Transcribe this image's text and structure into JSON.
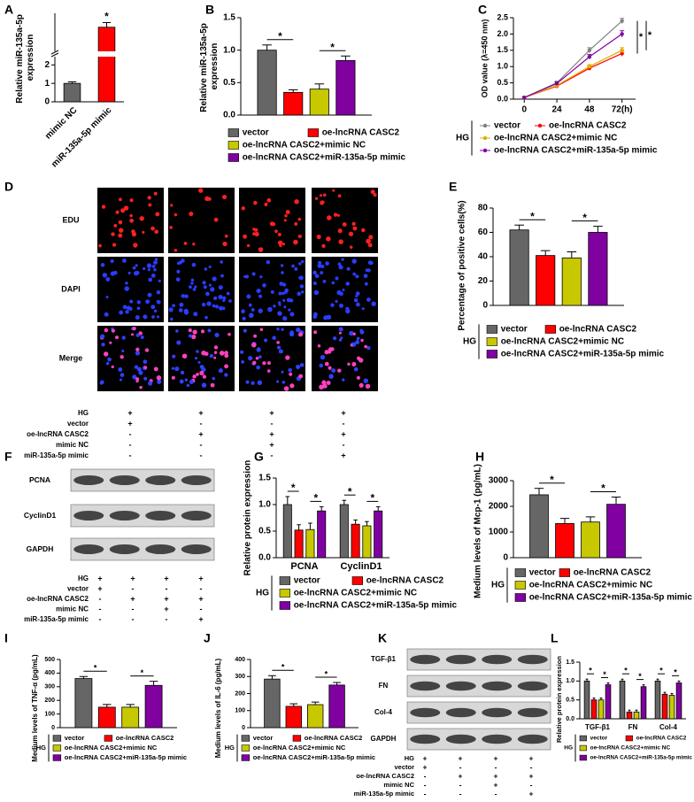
{
  "panel_labels": [
    "A",
    "B",
    "C",
    "D",
    "E",
    "F",
    "G",
    "H",
    "I",
    "J",
    "K",
    "L"
  ],
  "image_grid": {
    "row_labels": [
      "EDU",
      "DAPI",
      "Merge"
    ]
  },
  "blots": [
    {
      "labels": [
        "PCNA",
        "CyclinD1",
        "GAPDH"
      ]
    },
    {
      "labels": [
        "TGF-β1",
        "FN",
        "Col-4",
        "GAPDH"
      ]
    }
  ],
  "condition_tables": [
    {
      "rows": [
        {
          "label": "HG",
          "marks": [
            "+",
            "+",
            "+",
            "+"
          ]
        },
        {
          "label": "vector",
          "marks": [
            "+",
            "-",
            "-",
            "-"
          ]
        },
        {
          "label": "oe-lncRNA CASC2",
          "marks": [
            "-",
            "+",
            "+",
            "+"
          ]
        },
        {
          "label": "mimic NC",
          "marks": [
            "-",
            "-",
            "+",
            "-"
          ]
        },
        {
          "label": "miR-135a-5p mimic",
          "marks": [
            "-",
            "-",
            "-",
            "+"
          ]
        }
      ]
    },
    {
      "rows": [
        {
          "label": "HG",
          "marks": [
            "+",
            "+",
            "+",
            "+"
          ]
        },
        {
          "label": "vector",
          "marks": [
            "+",
            "-",
            "-",
            "-"
          ]
        },
        {
          "label": "oe-lncRNA CASC2",
          "marks": [
            "-",
            "+",
            "+",
            "+"
          ]
        },
        {
          "label": "mimic NC",
          "marks": [
            "-",
            "-",
            "+",
            "-"
          ]
        },
        {
          "label": "miR-135a-5p mimic",
          "marks": [
            "-",
            "-",
            "-",
            "+"
          ]
        }
      ]
    },
    {
      "rows": [
        {
          "label": "HG",
          "marks": [
            "+",
            "+",
            "+",
            "+"
          ]
        },
        {
          "label": "vector",
          "marks": [
            "+",
            "-",
            "-",
            "-"
          ]
        },
        {
          "label": "oe-lncRNA CASC2",
          "marks": [
            "-",
            "+",
            "+",
            "+"
          ]
        },
        {
          "label": "mimic NC",
          "marks": [
            "-",
            "-",
            "+",
            "-"
          ]
        },
        {
          "label": "miR-135a-5p mimic",
          "marks": [
            "-",
            "-",
            "-",
            "+"
          ]
        }
      ]
    }
  ],
  "chart_data": [
    {
      "type": "bar",
      "y_label": "Relative miR-135a-5p expression",
      "categories": [
        "mimic NC",
        "miR-135a-5p mimic"
      ],
      "values": [
        1.0,
        17
      ],
      "errors": [
        0.08,
        1.0
      ],
      "colors": [
        "#666666",
        "#ff0000"
      ],
      "ylim": [
        0,
        2.4
      ],
      "ylim_upper": [
        12,
        20
      ],
      "yticks": [
        0,
        1,
        2
      ],
      "axis_break": true,
      "annotations": [
        "*"
      ]
    },
    {
      "type": "bar",
      "y_label": "Relative miR-135a-5p expression",
      "series": [
        {
          "name": "vector",
          "color": "#666666",
          "values": [
            1.0
          ],
          "errors": [
            0.08
          ]
        },
        {
          "name": "oe-lncRNA CASC2",
          "color": "#ff0000",
          "values": [
            0.35
          ],
          "errors": [
            0.04
          ]
        },
        {
          "name": "oe-lncRNA CASC2+mimic NC",
          "color": "#c8c800",
          "values": [
            0.4
          ],
          "errors": [
            0.08
          ]
        },
        {
          "name": "oe-lncRNA CASC2+miR-135a-5p mimic",
          "color": "#8000a0",
          "values": [
            0.84
          ],
          "errors": [
            0.07
          ]
        }
      ],
      "ylim": [
        0,
        1.5
      ],
      "yticks": [
        {
          "value": 0,
          "label": "0.0"
        },
        {
          "value": 0.5,
          "label": "0.5"
        },
        {
          "value": 1,
          "label": "1.0"
        },
        {
          "value": 1.5,
          "label": "1.5"
        }
      ],
      "annotations": [
        "*",
        "*"
      ]
    },
    {
      "type": "line",
      "y_label": "OD value (λ=450 nm)",
      "x": [
        0,
        24,
        48,
        72
      ],
      "xlim": [
        -8,
        82
      ],
      "xticks": [
        0,
        24,
        48,
        {
          "value": 72,
          "label": "72(h)"
        }
      ],
      "ylim": [
        0,
        2.5
      ],
      "yticks": [
        {
          "value": 0,
          "label": "0.0"
        },
        {
          "value": 0.5,
          "label": "0.5"
        },
        {
          "value": 1,
          "label": "1.0"
        },
        {
          "value": 1.5,
          "label": "1.5"
        },
        {
          "value": 2,
          "label": "2.0"
        },
        {
          "value": 2.5,
          "label": "2.5"
        }
      ],
      "legend_group_label": "HG",
      "series": [
        {
          "name": "vector",
          "color": "#808080",
          "values": [
            0.05,
            0.5,
            1.5,
            2.4
          ],
          "errors": [
            0.02,
            0.05,
            0.08,
            0.08
          ]
        },
        {
          "name": "oe-lncRNA CASC2",
          "color": "#ff0000",
          "values": [
            0.05,
            0.4,
            0.95,
            1.4
          ],
          "errors": [
            0.02,
            0.04,
            0.06,
            0.08
          ]
        },
        {
          "name": "oe-lncRNA CASC2+mimic NC",
          "color": "#e0b000",
          "values": [
            0.05,
            0.42,
            1.0,
            1.5
          ],
          "errors": [
            0.02,
            0.04,
            0.06,
            0.08
          ]
        },
        {
          "name": "oe-lncRNA CASC2+miR-135a-5p mimic",
          "color": "#8000a0",
          "values": [
            0.05,
            0.48,
            1.3,
            2.0
          ],
          "errors": [
            0.02,
            0.05,
            0.07,
            0.1
          ]
        }
      ],
      "annotations": [
        "*",
        "*"
      ]
    },
    {
      "type": "bar",
      "y_label": "Percentage of positive cells(%)",
      "legend_group_label": "HG",
      "series": [
        {
          "name": "vector",
          "color": "#666666",
          "values": [
            62
          ],
          "errors": [
            4
          ]
        },
        {
          "name": "oe-lncRNA CASC2",
          "color": "#ff0000",
          "values": [
            41
          ],
          "errors": [
            4
          ]
        },
        {
          "name": "oe-lncRNA CASC2+mimic NC",
          "color": "#c8c800",
          "values": [
            39
          ],
          "errors": [
            5
          ]
        },
        {
          "name": "oe-lncRNA CASC2+miR-135a-5p mimic",
          "color": "#8000a0",
          "values": [
            60
          ],
          "errors": [
            5
          ]
        }
      ],
      "ylim": [
        0,
        80
      ],
      "yticks": [
        0,
        20,
        40,
        60,
        80
      ],
      "annotations": [
        "*",
        "*"
      ]
    },
    {
      "type": "bar",
      "y_label": "Relative protein expression",
      "categories": [
        "PCNA",
        "CyclinD1"
      ],
      "legend_group_label": "HG",
      "series": [
        {
          "name": "vector",
          "color": "#666666",
          "values": [
            1.0,
            1.0
          ],
          "errors": [
            0.15,
            0.08
          ]
        },
        {
          "name": "oe-lncRNA CASC2",
          "color": "#ff0000",
          "values": [
            0.52,
            0.63
          ],
          "errors": [
            0.1,
            0.08
          ]
        },
        {
          "name": "oe-lncRNA CASC2+mimic NC",
          "color": "#c8c800",
          "values": [
            0.53,
            0.6
          ],
          "errors": [
            0.12,
            0.08
          ]
        },
        {
          "name": "oe-lncRNA CASC2+miR-135a-5p mimic",
          "color": "#8000a0",
          "values": [
            0.88,
            0.88
          ],
          "errors": [
            0.08,
            0.08
          ]
        }
      ],
      "ylim": [
        0,
        1.5
      ],
      "yticks": [
        {
          "value": 0,
          "label": "0.0"
        },
        {
          "value": 0.5,
          "label": "0.5"
        },
        {
          "value": 1,
          "label": "1.0"
        },
        {
          "value": 1.5,
          "label": "1.5"
        }
      ],
      "annotations": [
        "*",
        "*",
        "*",
        "*"
      ]
    },
    {
      "type": "bar",
      "y_label": "Medium levels of Mcp-1 (pg/mL)",
      "legend_group_label": "HG",
      "series": [
        {
          "name": "vector",
          "color": "#666666",
          "values": [
            2450
          ],
          "errors": [
            250
          ]
        },
        {
          "name": "oe-lncRNA CASC2",
          "color": "#ff0000",
          "values": [
            1330
          ],
          "errors": [
            200
          ]
        },
        {
          "name": "oe-lncRNA CASC2+mimic NC",
          "color": "#c8c800",
          "values": [
            1390
          ],
          "errors": [
            200
          ]
        },
        {
          "name": "oe-lncRNA CASC2+miR-135a-5p mimic",
          "color": "#8000a0",
          "values": [
            2080
          ],
          "errors": [
            280
          ]
        }
      ],
      "ylim": [
        0,
        3000
      ],
      "yticks": [
        0,
        1000,
        2000,
        3000
      ],
      "annotations": [
        "*",
        "*"
      ]
    },
    {
      "type": "bar",
      "y_label": "Medium levels of TNF-α (pg/mL)",
      "legend_group_label": "HG",
      "series": [
        {
          "name": "vector",
          "color": "#666666",
          "values": [
            360
          ],
          "errors": [
            15
          ]
        },
        {
          "name": "oe-lncRNA CASC2",
          "color": "#ff0000",
          "values": [
            150
          ],
          "errors": [
            20
          ]
        },
        {
          "name": "oe-lncRNA CASC2+mimic NC",
          "color": "#c8c800",
          "values": [
            150
          ],
          "errors": [
            20
          ]
        },
        {
          "name": "oe-lncRNA CASC2+miR-135a-5p mimic",
          "color": "#8000a0",
          "values": [
            310
          ],
          "errors": [
            30
          ]
        }
      ],
      "ylim": [
        0,
        500
      ],
      "yticks": [
        0,
        100,
        200,
        300,
        400,
        500
      ],
      "annotations": [
        "*",
        "*"
      ]
    },
    {
      "type": "bar",
      "y_label": "Medium levels of IL-6 (pg/mL)",
      "legend_group_label": "HG",
      "series": [
        {
          "name": "vector",
          "color": "#666666",
          "values": [
            285
          ],
          "errors": [
            20
          ]
        },
        {
          "name": "oe-lncRNA CASC2",
          "color": "#ff0000",
          "values": [
            125
          ],
          "errors": [
            15
          ]
        },
        {
          "name": "oe-lncRNA CASC2+mimic NC",
          "color": "#c8c800",
          "values": [
            135
          ],
          "errors": [
            15
          ]
        },
        {
          "name": "oe-lncRNA CASC2+miR-135a-5p mimic",
          "color": "#8000a0",
          "values": [
            250
          ],
          "errors": [
            15
          ]
        }
      ],
      "ylim": [
        0,
        400
      ],
      "yticks": [
        0,
        100,
        200,
        300,
        400
      ],
      "annotations": [
        "*",
        "*"
      ]
    },
    {
      "type": "bar",
      "y_label": "Relative protein expression",
      "categories": [
        "TGF-β1",
        "FN",
        "Col-4"
      ],
      "legend_group_label": "HG",
      "series": [
        {
          "name": "vector",
          "color": "#666666",
          "values": [
            1.0,
            1.0,
            1.0
          ],
          "errors": [
            0.05,
            0.05,
            0.05
          ]
        },
        {
          "name": "oe-lncRNA CASC2",
          "color": "#ff0000",
          "values": [
            0.5,
            0.18,
            0.65
          ],
          "errors": [
            0.05,
            0.05,
            0.05
          ]
        },
        {
          "name": "oe-lncRNA CASC2+mimic NC",
          "color": "#c8c800",
          "values": [
            0.5,
            0.18,
            0.62
          ],
          "errors": [
            0.05,
            0.05,
            0.05
          ]
        },
        {
          "name": "oe-lncRNA CASC2+miR-135a-5p mimic",
          "color": "#8000a0",
          "values": [
            0.9,
            0.85,
            0.95
          ],
          "errors": [
            0.05,
            0.05,
            0.05
          ]
        }
      ],
      "ylim": [
        0,
        1.5
      ],
      "yticks": [
        {
          "value": 0,
          "label": "0.0"
        },
        {
          "value": 0.5,
          "label": "0.5"
        },
        {
          "value": 1,
          "label": "1.0"
        },
        {
          "value": 1.5,
          "label": "1.5"
        }
      ],
      "annotations": [
        "*",
        "*",
        "*",
        "*",
        "*",
        "*"
      ]
    }
  ]
}
